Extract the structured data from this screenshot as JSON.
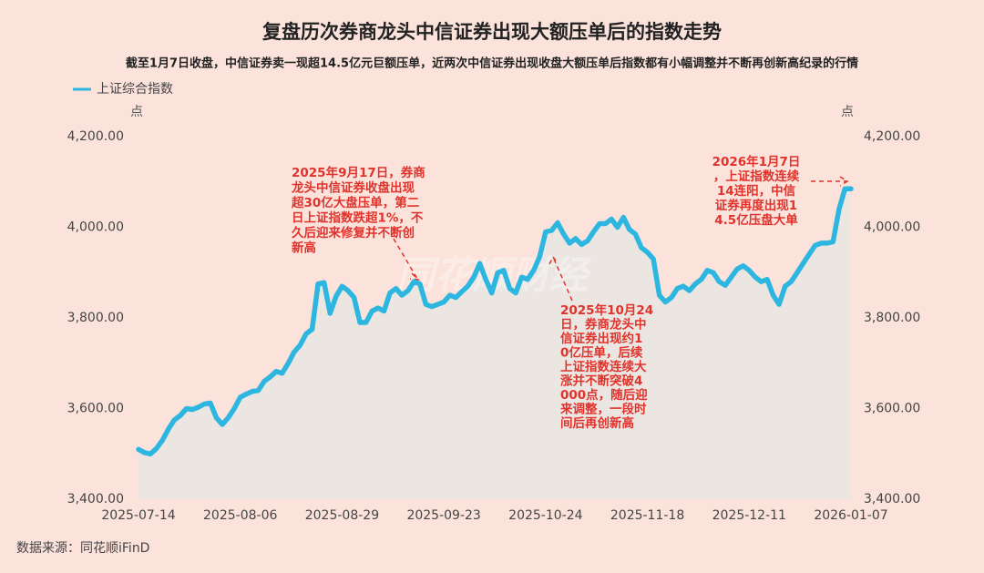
{
  "chart_data": {
    "type": "line",
    "title": "复盘历次券商龙头中信证券出现大额压单后的指数走势",
    "subtitle": "截至1月7日收盘，中信证券卖一现超14.5亿元巨额压单，近两次中信证券出现收盘大额压单后指数都有小幅调整并不断再创新高纪录的行情",
    "y_unit": "点",
    "y2_unit": "点",
    "source": "数据来源：同花顺iFinD",
    "watermark": "同花顺财经",
    "categories": [
      "2025-07-14",
      null,
      null,
      null,
      null,
      null,
      null,
      null,
      null,
      null,
      null,
      null,
      null,
      null,
      null,
      null,
      null,
      "2025-08-06",
      null,
      null,
      null,
      null,
      null,
      null,
      null,
      null,
      null,
      null,
      null,
      null,
      null,
      null,
      null,
      null,
      "2025-08-29",
      null,
      null,
      null,
      null,
      null,
      null,
      null,
      null,
      null,
      null,
      null,
      null,
      null,
      null,
      null,
      null,
      "2025-09-23",
      null,
      null,
      null,
      null,
      null,
      null,
      null,
      null,
      null,
      null,
      null,
      null,
      null,
      null,
      null,
      null,
      "2025-10-24",
      null,
      null,
      null,
      null,
      null,
      null,
      null,
      null,
      null,
      null,
      null,
      null,
      null,
      null,
      null,
      null,
      "2025-11-18",
      null,
      null,
      null,
      null,
      null,
      null,
      null,
      null,
      null,
      null,
      null,
      null,
      null,
      null,
      null,
      null,
      "2025-12-11",
      null,
      null,
      null,
      null,
      null,
      null,
      null,
      null,
      null,
      null,
      null,
      null,
      null,
      null,
      null,
      null,
      "2026-01-07"
    ],
    "series": [
      {
        "name": "上证综合指数",
        "color": "#2db6e0",
        "values": [
          3510,
          3503,
          3500,
          3512,
          3530,
          3555,
          3575,
          3585,
          3600,
          3598,
          3603,
          3610,
          3612,
          3580,
          3565,
          3580,
          3600,
          3625,
          3632,
          3638,
          3640,
          3660,
          3670,
          3682,
          3678,
          3700,
          3725,
          3740,
          3765,
          3775,
          3875,
          3878,
          3810,
          3848,
          3870,
          3860,
          3845,
          3790,
          3790,
          3815,
          3822,
          3815,
          3855,
          3865,
          3850,
          3860,
          3880,
          3875,
          3830,
          3825,
          3830,
          3835,
          3850,
          3845,
          3858,
          3870,
          3890,
          3920,
          3885,
          3855,
          3900,
          3905,
          3865,
          3855,
          3890,
          3885,
          3905,
          3935,
          3990,
          3993,
          4010,
          3985,
          3965,
          3975,
          3962,
          3970,
          3990,
          4008,
          4008,
          4018,
          4000,
          4022,
          3995,
          3985,
          3955,
          3945,
          3930,
          3850,
          3835,
          3845,
          3865,
          3870,
          3860,
          3875,
          3885,
          3905,
          3900,
          3880,
          3872,
          3890,
          3908,
          3915,
          3905,
          3890,
          3880,
          3885,
          3850,
          3830,
          3870,
          3880,
          3900,
          3920,
          3940,
          3960,
          3965,
          3965,
          3968,
          4040,
          4085,
          4085
        ]
      }
    ],
    "ylim": [
      3400,
      4200
    ],
    "yticks": [
      {
        "value": 3400,
        "label": "3,400.00"
      },
      {
        "value": 3600,
        "label": "3,600.00"
      },
      {
        "value": 3800,
        "label": "3,800.00"
      },
      {
        "value": 4000,
        "label": "4,000.00"
      },
      {
        "value": 4200,
        "label": "4,200.00"
      }
    ],
    "y2lim": [
      3400,
      4200
    ],
    "y2ticks": [
      {
        "value": 3400,
        "label": "3,400.00"
      },
      {
        "value": 3600,
        "label": "3,600.00"
      },
      {
        "value": 3800,
        "label": "3,800.00"
      },
      {
        "value": 4000,
        "label": "4,000.00"
      },
      {
        "value": 4200,
        "label": "4,200.00"
      }
    ],
    "grid": false,
    "legend": "top-left",
    "area_color": "#ece6e3",
    "annotations": [
      {
        "lines": [
          "2025年9月17日，券商",
          "龙头中信证券收盘出现",
          "超30亿大盘压单，第二",
          "日上证指数跌超1%，不",
          "久后迎来修复并不断创",
          "新高"
        ]
      },
      {
        "lines": [
          "2025年10月24",
          "日，券商龙头中",
          "信证券出现约1",
          "0亿压单，后续",
          "上证指数连续大",
          "涨并不断突破4",
          "000点，随后迎",
          "来调整，一段时",
          "间后再创新高"
        ]
      },
      {
        "lines": [
          "2026年1月7日",
          "，上证指数连续",
          "14连阳，中信",
          "证券再度出现1",
          "4.5亿压盘大单"
        ]
      }
    ]
  }
}
